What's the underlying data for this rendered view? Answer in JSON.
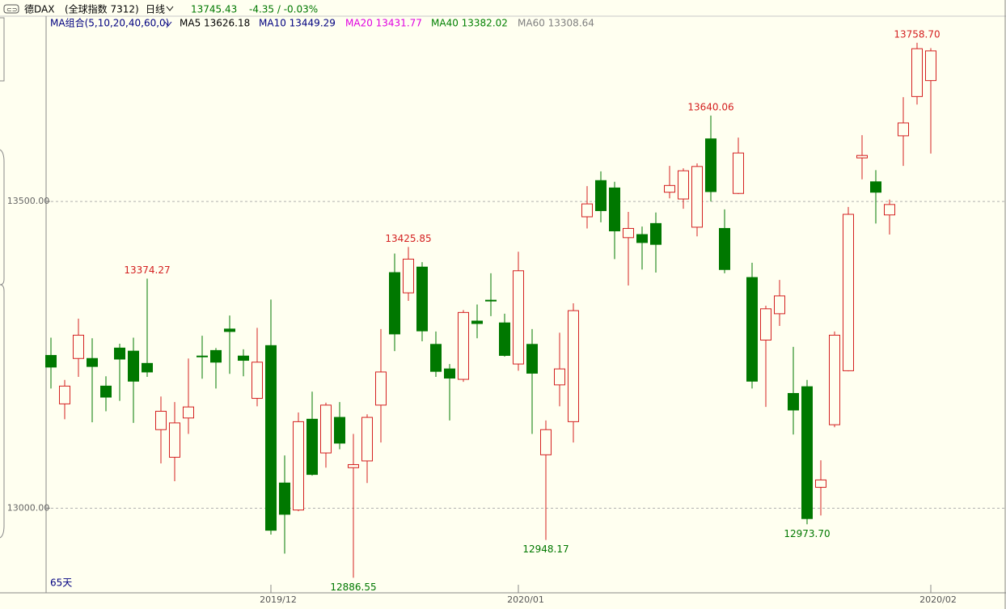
{
  "header": {
    "icon": "⊂⊃",
    "name": "德DAX",
    "market": "(全球指数 7312)",
    "period": "日线",
    "last": "13745.43",
    "change": "-4.35 / -0.03%",
    "ma_group": "MA组合(5,10,20,40,60,0)",
    "ma": [
      {
        "label": "MA5 13626.18",
        "color": "#000000"
      },
      {
        "label": "MA10 13449.29",
        "color": "#000080"
      },
      {
        "label": "MA20 13431.77",
        "color": "#e000e0"
      },
      {
        "label": "MA40 13382.02",
        "color": "#008000"
      },
      {
        "label": "MA60 13308.64",
        "color": "#808080"
      }
    ]
  },
  "chart_data": {
    "type": "candlestick",
    "up_color": "#d42020",
    "down_color": "#007800",
    "open": [
      13249,
      13170,
      13244,
      13244,
      13199,
      13261,
      13256,
      13236,
      13128,
      13083,
      13147,
      13248,
      13257,
      13292,
      13248,
      13179,
      13265,
      13041,
      12997,
      13145,
      13090,
      13148,
      13066,
      13077,
      13168,
      13384,
      13351,
      13393,
      13267,
      13227,
      13210,
      13305,
      13339,
      13302,
      13235,
      13267,
      13087,
      13201,
      13141,
      13475,
      13534,
      13522,
      13441,
      13446,
      13464,
      13515,
      13504,
      13458,
      13602,
      13456,
      13513,
      13376,
      13274,
      13317,
      13187,
      13198,
      13034,
      13136,
      13224,
      13571,
      13532,
      13478,
      13607,
      13671,
      13697
    ],
    "high": [
      13278,
      13209,
      13309,
      13277,
      13215,
      13268,
      13278,
      13374.27,
      13182,
      13173,
      13244,
      13281,
      13261,
      13314,
      13259,
      13294,
      13340,
      13086,
      13156,
      13190,
      13172,
      13173,
      13121,
      13153,
      13292,
      13415,
      13425.85,
      13401,
      13288,
      13235,
      13323,
      13332,
      13383,
      13317,
      13418,
      13292,
      13143,
      13286,
      13334,
      13525,
      13549,
      13532,
      13483,
      13459,
      13482,
      13558,
      13554,
      13562,
      13640.06,
      13487,
      13604,
      13400,
      13330,
      13372,
      13263,
      13209,
      13078,
      13288,
      13491,
      13608,
      13551,
      13503,
      13670,
      13758.7,
      13750
    ],
    "low": [
      13195,
      13145,
      13214,
      13140,
      13158,
      13175,
      13139,
      13214,
      13073,
      13044,
      13121,
      13211,
      13195,
      13219,
      13215,
      13166,
      12957,
      12926,
      12995,
      13053,
      13066,
      13096,
      12886.55,
      13041,
      13107,
      13256,
      13338,
      13272,
      13214,
      13143,
      13206,
      13277,
      13313,
      13247,
      13224,
      13121,
      12948.17,
      13166,
      13107,
      13456,
      13466,
      13406,
      13363,
      13389,
      13384,
      13505,
      13488,
      13443,
      13500,
      13383,
      13512,
      13195,
      13165,
      13297,
      13120,
      12973.7,
      12988,
      13132,
      13223,
      13536,
      13464,
      13446,
      13558,
      13658,
      13578
    ],
    "close": [
      13230,
      13199,
      13282,
      13231,
      13181,
      13243,
      13207,
      13222,
      13158,
      13139,
      13165,
      13247,
      13238,
      13288,
      13241,
      13238,
      12964,
      12990,
      13141,
      13055,
      13168,
      13106,
      13071,
      13148,
      13222,
      13284,
      13406,
      13289,
      13223,
      13212,
      13319,
      13301,
      13338,
      13249,
      13387,
      13220,
      13128,
      13227,
      13322,
      13496,
      13485,
      13452,
      13456,
      13433,
      13430,
      13526,
      13550,
      13557,
      13516,
      13389,
      13579,
      13207,
      13325,
      13346,
      13160,
      12983,
      13046,
      13282,
      13479,
      13575,
      13515,
      13495,
      13628,
      13749,
      13745.43
    ],
    "high_labels": [
      null,
      null,
      null,
      null,
      null,
      null,
      null,
      "13374.27",
      null,
      null,
      null,
      null,
      null,
      null,
      null,
      null,
      null,
      null,
      null,
      null,
      null,
      null,
      null,
      null,
      null,
      null,
      "13425.85",
      null,
      null,
      null,
      null,
      null,
      null,
      null,
      null,
      null,
      null,
      null,
      null,
      null,
      null,
      null,
      null,
      null,
      null,
      null,
      null,
      null,
      "13640.06",
      null,
      null,
      null,
      null,
      null,
      null,
      null,
      null,
      null,
      null,
      null,
      null,
      null,
      null,
      "13758.70",
      null
    ],
    "low_labels": [
      null,
      null,
      null,
      null,
      null,
      null,
      null,
      null,
      null,
      null,
      null,
      null,
      null,
      null,
      null,
      null,
      null,
      null,
      null,
      null,
      null,
      null,
      "12886.55",
      null,
      null,
      null,
      null,
      null,
      null,
      null,
      null,
      null,
      null,
      null,
      null,
      null,
      "12948.17",
      null,
      null,
      null,
      null,
      null,
      null,
      null,
      null,
      null,
      null,
      null,
      null,
      null,
      null,
      null,
      null,
      null,
      null,
      "12973.70",
      null,
      null,
      null,
      null,
      null,
      null,
      null,
      null,
      null,
      null,
      null,
      null,
      null,
      null
    ],
    "ylim": [
      12862,
      13802
    ],
    "yticks": [
      {
        "value": 13000,
        "label": "13000.00"
      },
      {
        "value": 13500,
        "label": "13500.00"
      }
    ],
    "xticks": [
      {
        "value": 16,
        "label": "2019/12"
      },
      {
        "value": 34,
        "label": "2020/01"
      },
      {
        "value": 64,
        "label": "2020/02"
      }
    ],
    "period_label": "65天",
    "grid": true
  }
}
